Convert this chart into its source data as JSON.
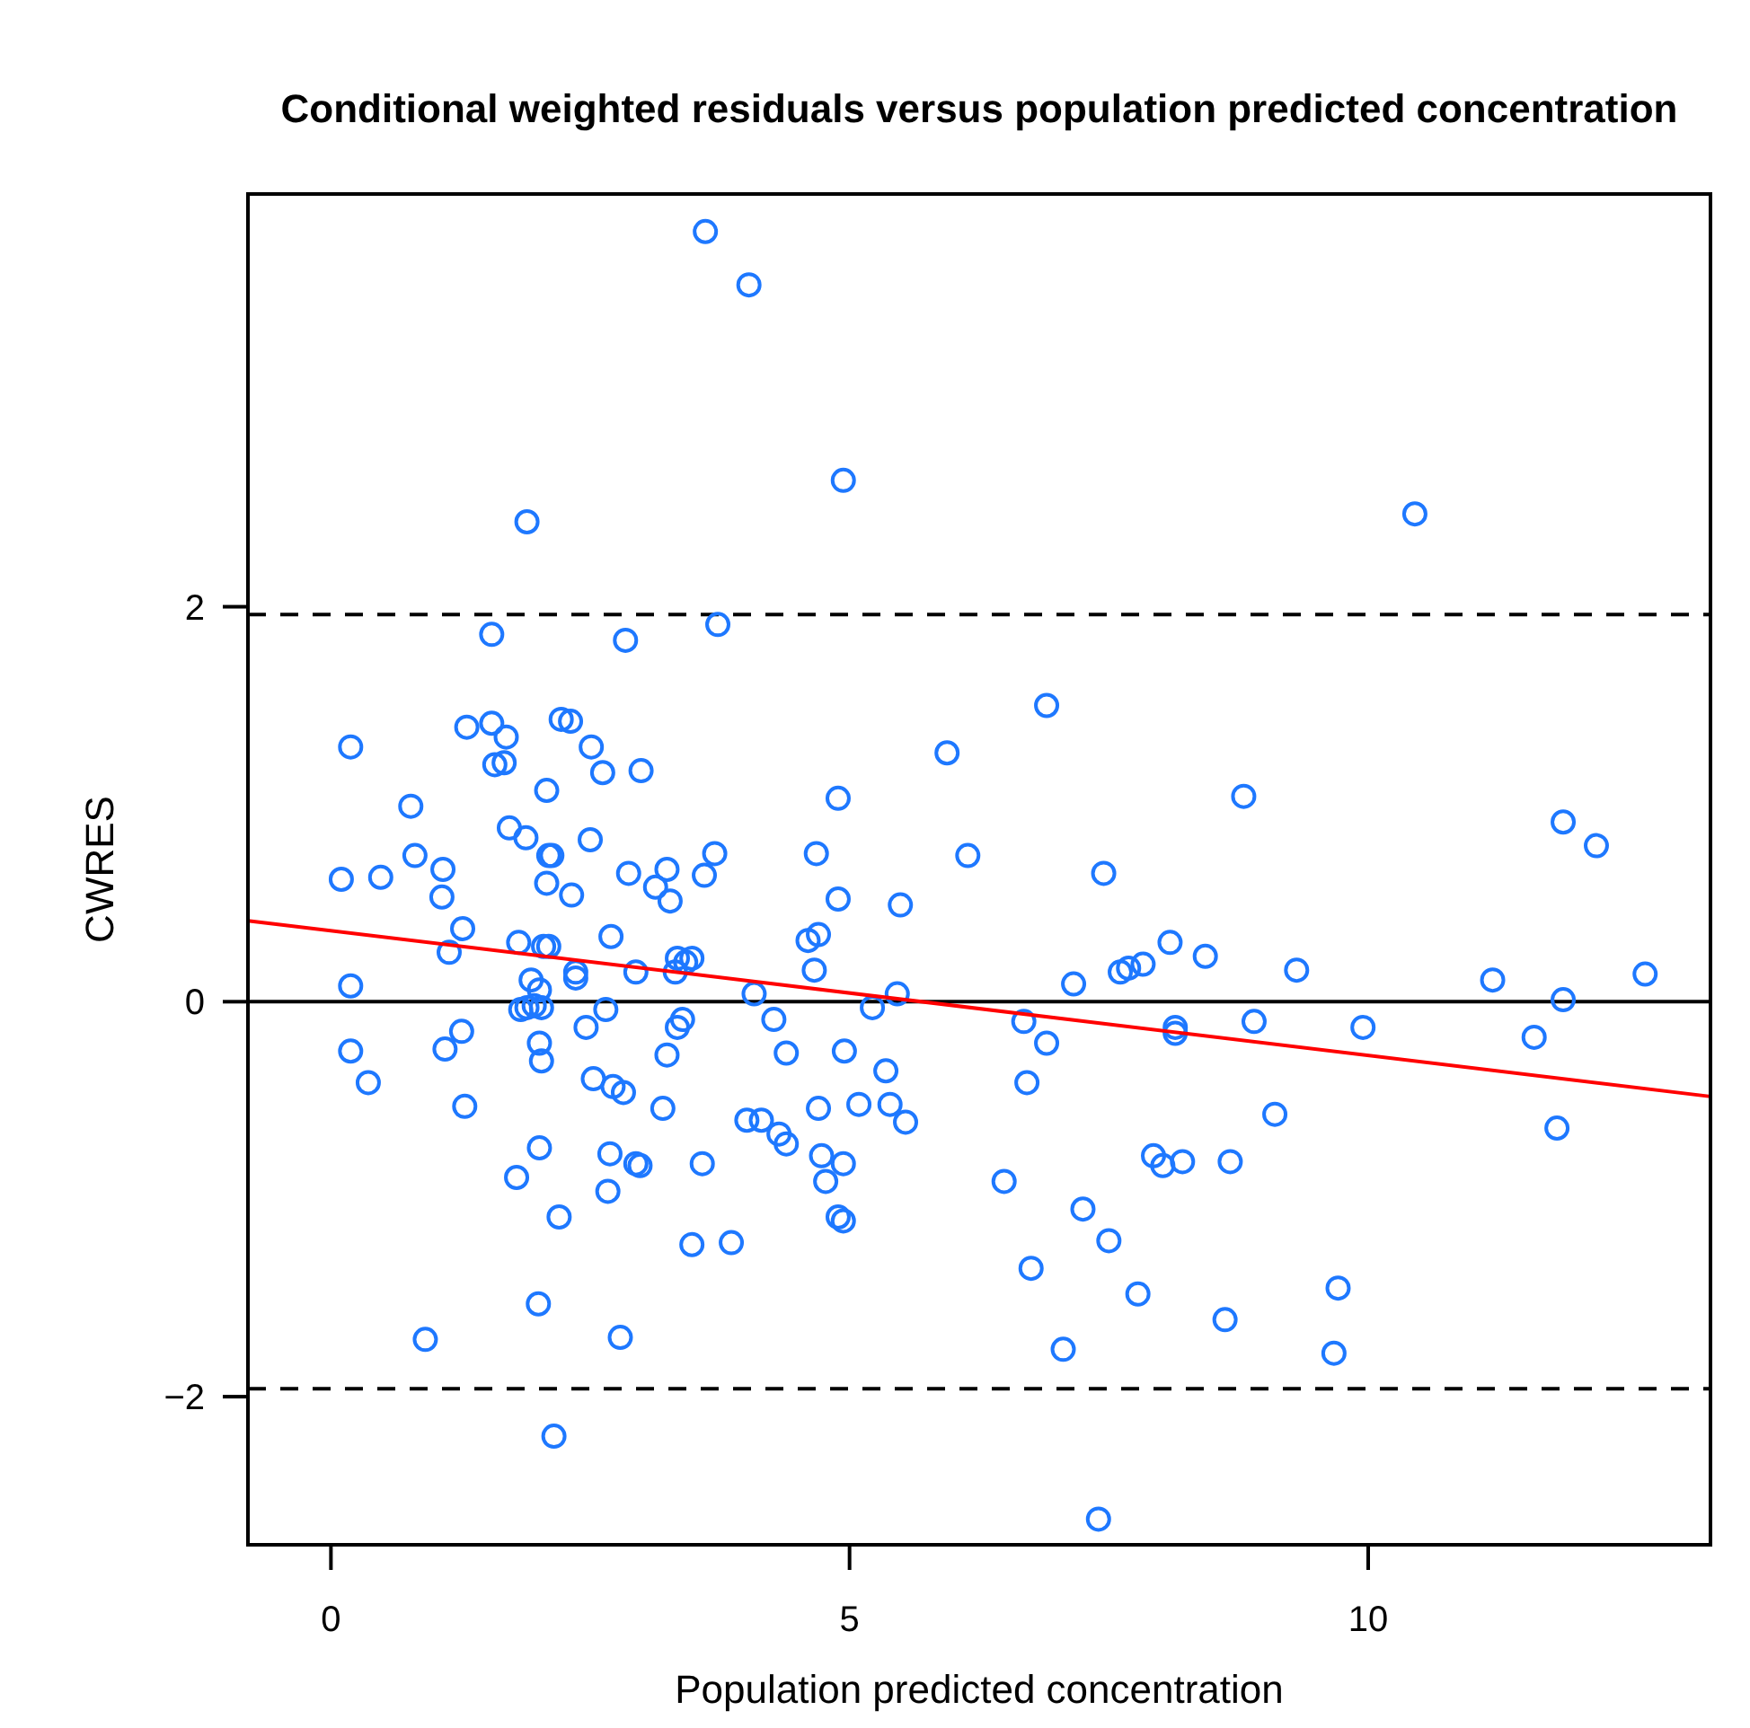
{
  "chart_data": {
    "type": "scatter",
    "title": "Conditional weighted residuals versus population predicted concentration",
    "xlabel": "Population predicted concentration",
    "ylabel": "CWRES",
    "xlim": [
      -0.8,
      13.3
    ],
    "ylim": [
      -2.75,
      4.09
    ],
    "xticks": [
      0,
      5,
      10
    ],
    "yticks": [
      -2,
      0,
      2
    ],
    "grid": false,
    "ref_lines": [
      {
        "axis": "y",
        "value": 0,
        "color": "#000000",
        "line_style": "solid"
      },
      {
        "axis": "y",
        "value": 1.96,
        "color": "#000000",
        "line_style": "dashed"
      },
      {
        "axis": "y",
        "value": -1.96,
        "color": "#000000",
        "line_style": "dashed"
      }
    ],
    "series": [
      {
        "color": "#1e78ff",
        "marker": "circle",
        "x": [
          3.61,
          4.03,
          4.94,
          1.89,
          10.45,
          1.55,
          2.84,
          3.73,
          6.9,
          0.19,
          1.31,
          1.55,
          1.69,
          1.58,
          1.67,
          2.22,
          2.31,
          2.51,
          2.62,
          2.99,
          2.08,
          5.94,
          8.8,
          4.89,
          0.77,
          11.88,
          12.2,
          1.72,
          1.88,
          2.1,
          2.13,
          2.5,
          0.81,
          0.1,
          0.48,
          1.08,
          1.07,
          2.87,
          3.24,
          3.13,
          3.6,
          3.7,
          4.68,
          4.89,
          5.49,
          6.14,
          7.45,
          2.32,
          2.08,
          3.27,
          1.27,
          1.14,
          1.81,
          2.05,
          2.1,
          2.7,
          2.36,
          2.36,
          2.94,
          3.34,
          3.42,
          3.32,
          3.48,
          4.08,
          4.6,
          4.7,
          4.66,
          5.46,
          0.19,
          1.93,
          2.01,
          1.83,
          1.96,
          2.03,
          1.89,
          2.65,
          2.46,
          3.39,
          3.34,
          4.27,
          5.22,
          7.16,
          7.61,
          7.69,
          7.83,
          8.09,
          8.43,
          9.31,
          11.2,
          12.67,
          11.88,
          6.68,
          8.14,
          8.14,
          8.9,
          9.95,
          11.6,
          0.19,
          1.1,
          1.26,
          0.36,
          2.01,
          2.03,
          2.53,
          2.72,
          2.82,
          3.24,
          4.39,
          4.95,
          5.35,
          6.9,
          6.71,
          1.29,
          3.2,
          4.01,
          4.15,
          4.7,
          5.09,
          5.39,
          5.54,
          9.1,
          4.32,
          4.39,
          2.01,
          2.69,
          2.94,
          2.98,
          3.58,
          1.79,
          4.73,
          4.77,
          4.94,
          2.67,
          4.89,
          4.94,
          2.2,
          6.49,
          7.93,
          8.21,
          8.02,
          8.67,
          7.25,
          7.5,
          3.86,
          3.48,
          6.75,
          7.78,
          9.71,
          2.0,
          0.91,
          2.79,
          7.06,
          8.62,
          9.67,
          2.15,
          7.4,
          11.82
        ],
        "values": [
          3.9,
          3.63,
          2.64,
          2.43,
          2.47,
          1.86,
          1.83,
          1.91,
          1.5,
          1.29,
          1.39,
          1.41,
          1.34,
          1.2,
          1.21,
          1.43,
          1.42,
          1.29,
          1.16,
          1.17,
          1.07,
          1.26,
          1.04,
          1.03,
          0.99,
          0.91,
          0.79,
          0.88,
          0.83,
          0.74,
          0.74,
          0.82,
          0.74,
          0.62,
          0.63,
          0.67,
          0.53,
          0.65,
          0.67,
          0.58,
          0.64,
          0.75,
          0.75,
          0.52,
          0.49,
          0.74,
          0.65,
          0.54,
          0.6,
          0.51,
          0.37,
          0.25,
          0.3,
          0.28,
          0.28,
          0.33,
          0.15,
          0.12,
          0.15,
          0.22,
          0.2,
          0.15,
          0.22,
          0.04,
          0.31,
          0.34,
          0.16,
          0.04,
          0.08,
          0.11,
          0.06,
          -0.04,
          -0.02,
          -0.03,
          -0.03,
          -0.04,
          -0.13,
          -0.09,
          -0.13,
          -0.09,
          -0.03,
          0.09,
          0.15,
          0.17,
          0.19,
          0.3,
          0.23,
          0.16,
          0.11,
          0.14,
          0.01,
          -0.1,
          -0.13,
          -0.16,
          -0.1,
          -0.13,
          -0.18,
          -0.25,
          -0.24,
          -0.15,
          -0.41,
          -0.21,
          -0.3,
          -0.39,
          -0.43,
          -0.46,
          -0.27,
          -0.26,
          -0.25,
          -0.35,
          -0.21,
          -0.41,
          -0.53,
          -0.54,
          -0.6,
          -0.6,
          -0.54,
          -0.52,
          -0.52,
          -0.61,
          -0.57,
          -0.67,
          -0.72,
          -0.74,
          -0.77,
          -0.82,
          -0.83,
          -0.82,
          -0.89,
          -0.78,
          -0.91,
          -0.82,
          -0.96,
          -1.09,
          -1.11,
          -1.09,
          -0.91,
          -0.78,
          -0.81,
          -0.83,
          -0.81,
          -1.05,
          -1.21,
          -1.22,
          -1.23,
          -1.35,
          -1.48,
          -1.45,
          -1.53,
          -1.71,
          -1.7,
          -1.76,
          -1.61,
          -1.78,
          -2.2,
          -2.62,
          -0.64
        ]
      },
      {
        "type": "line",
        "color": "#ff0000",
        "x": [
          -0.8,
          13.3
        ],
        "values": [
          0.41,
          -0.48
        ]
      }
    ]
  }
}
